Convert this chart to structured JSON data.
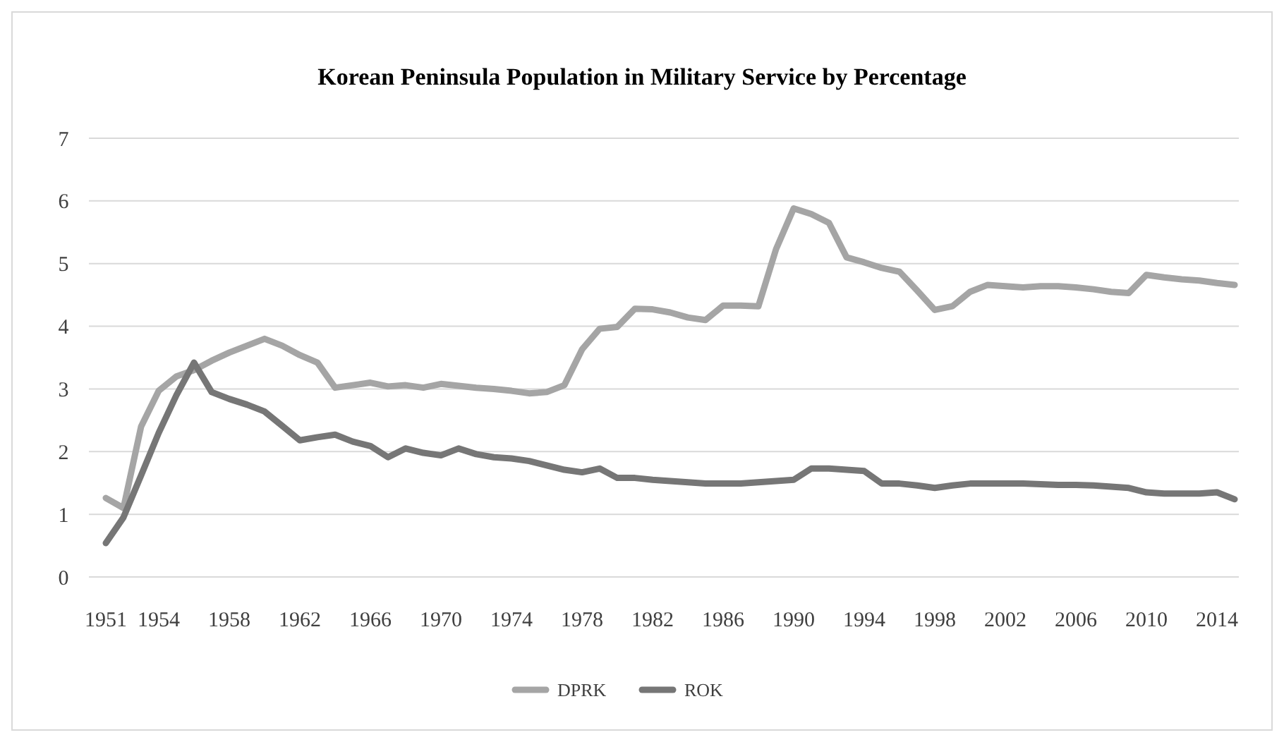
{
  "chart_data": {
    "type": "line",
    "title": "Korean Peninsula Population in Military Service by Percentage",
    "categories": [
      "1951",
      null,
      null,
      "1954",
      null,
      null,
      null,
      "1958",
      null,
      null,
      null,
      "1962",
      null,
      null,
      null,
      "1966",
      null,
      null,
      null,
      "1970",
      null,
      null,
      null,
      "1974",
      null,
      null,
      null,
      "1978",
      null,
      null,
      null,
      "1982",
      null,
      null,
      null,
      "1986",
      null,
      null,
      null,
      "1990",
      null,
      null,
      null,
      "1994",
      null,
      null,
      null,
      "1998",
      null,
      null,
      null,
      "2002",
      null,
      null,
      null,
      "2006",
      null,
      null,
      null,
      "2010",
      null,
      null,
      null,
      "2014",
      null
    ],
    "series": [
      {
        "name": "DPRK",
        "color": "#a5a5a5",
        "values": [
          1.26,
          1.1,
          2.4,
          2.97,
          3.2,
          3.3,
          3.45,
          3.58,
          3.69,
          3.8,
          3.69,
          3.54,
          3.42,
          3.02,
          3.06,
          3.1,
          3.04,
          3.06,
          3.02,
          3.08,
          3.05,
          3.02,
          3.0,
          2.97,
          2.93,
          2.95,
          3.06,
          3.63,
          3.96,
          3.99,
          4.28,
          4.27,
          4.22,
          4.14,
          4.1,
          4.33,
          4.33,
          4.32,
          5.23,
          5.88,
          5.79,
          5.65,
          5.1,
          5.02,
          4.93,
          4.87,
          4.57,
          4.26,
          4.32,
          4.55,
          4.66,
          4.64,
          4.62,
          4.64,
          4.64,
          4.62,
          4.59,
          4.55,
          4.53,
          4.82,
          4.78,
          4.75,
          4.73,
          4.69,
          4.66
        ]
      },
      {
        "name": "ROK",
        "color": "#767676",
        "values": [
          0.54,
          0.95,
          1.62,
          2.3,
          2.9,
          3.42,
          2.95,
          2.84,
          2.75,
          2.64,
          2.41,
          2.18,
          2.23,
          2.27,
          2.16,
          2.09,
          1.91,
          2.05,
          1.98,
          1.94,
          2.05,
          1.96,
          1.91,
          1.89,
          1.85,
          1.78,
          1.71,
          1.67,
          1.73,
          1.58,
          1.58,
          1.55,
          1.53,
          1.51,
          1.49,
          1.49,
          1.49,
          1.51,
          1.53,
          1.55,
          1.73,
          1.73,
          1.71,
          1.69,
          1.49,
          1.49,
          1.46,
          1.42,
          1.46,
          1.49,
          1.49,
          1.49,
          1.49,
          1.48,
          1.47,
          1.47,
          1.46,
          1.44,
          1.42,
          1.35,
          1.33,
          1.33,
          1.33,
          1.35,
          1.24
        ]
      }
    ],
    "ylim": [
      0,
      7
    ],
    "yticks": [
      0,
      1,
      2,
      3,
      4,
      5,
      6,
      7
    ],
    "grid": "y",
    "legend": "bottom",
    "marker": "none",
    "line_style": "solid"
  }
}
